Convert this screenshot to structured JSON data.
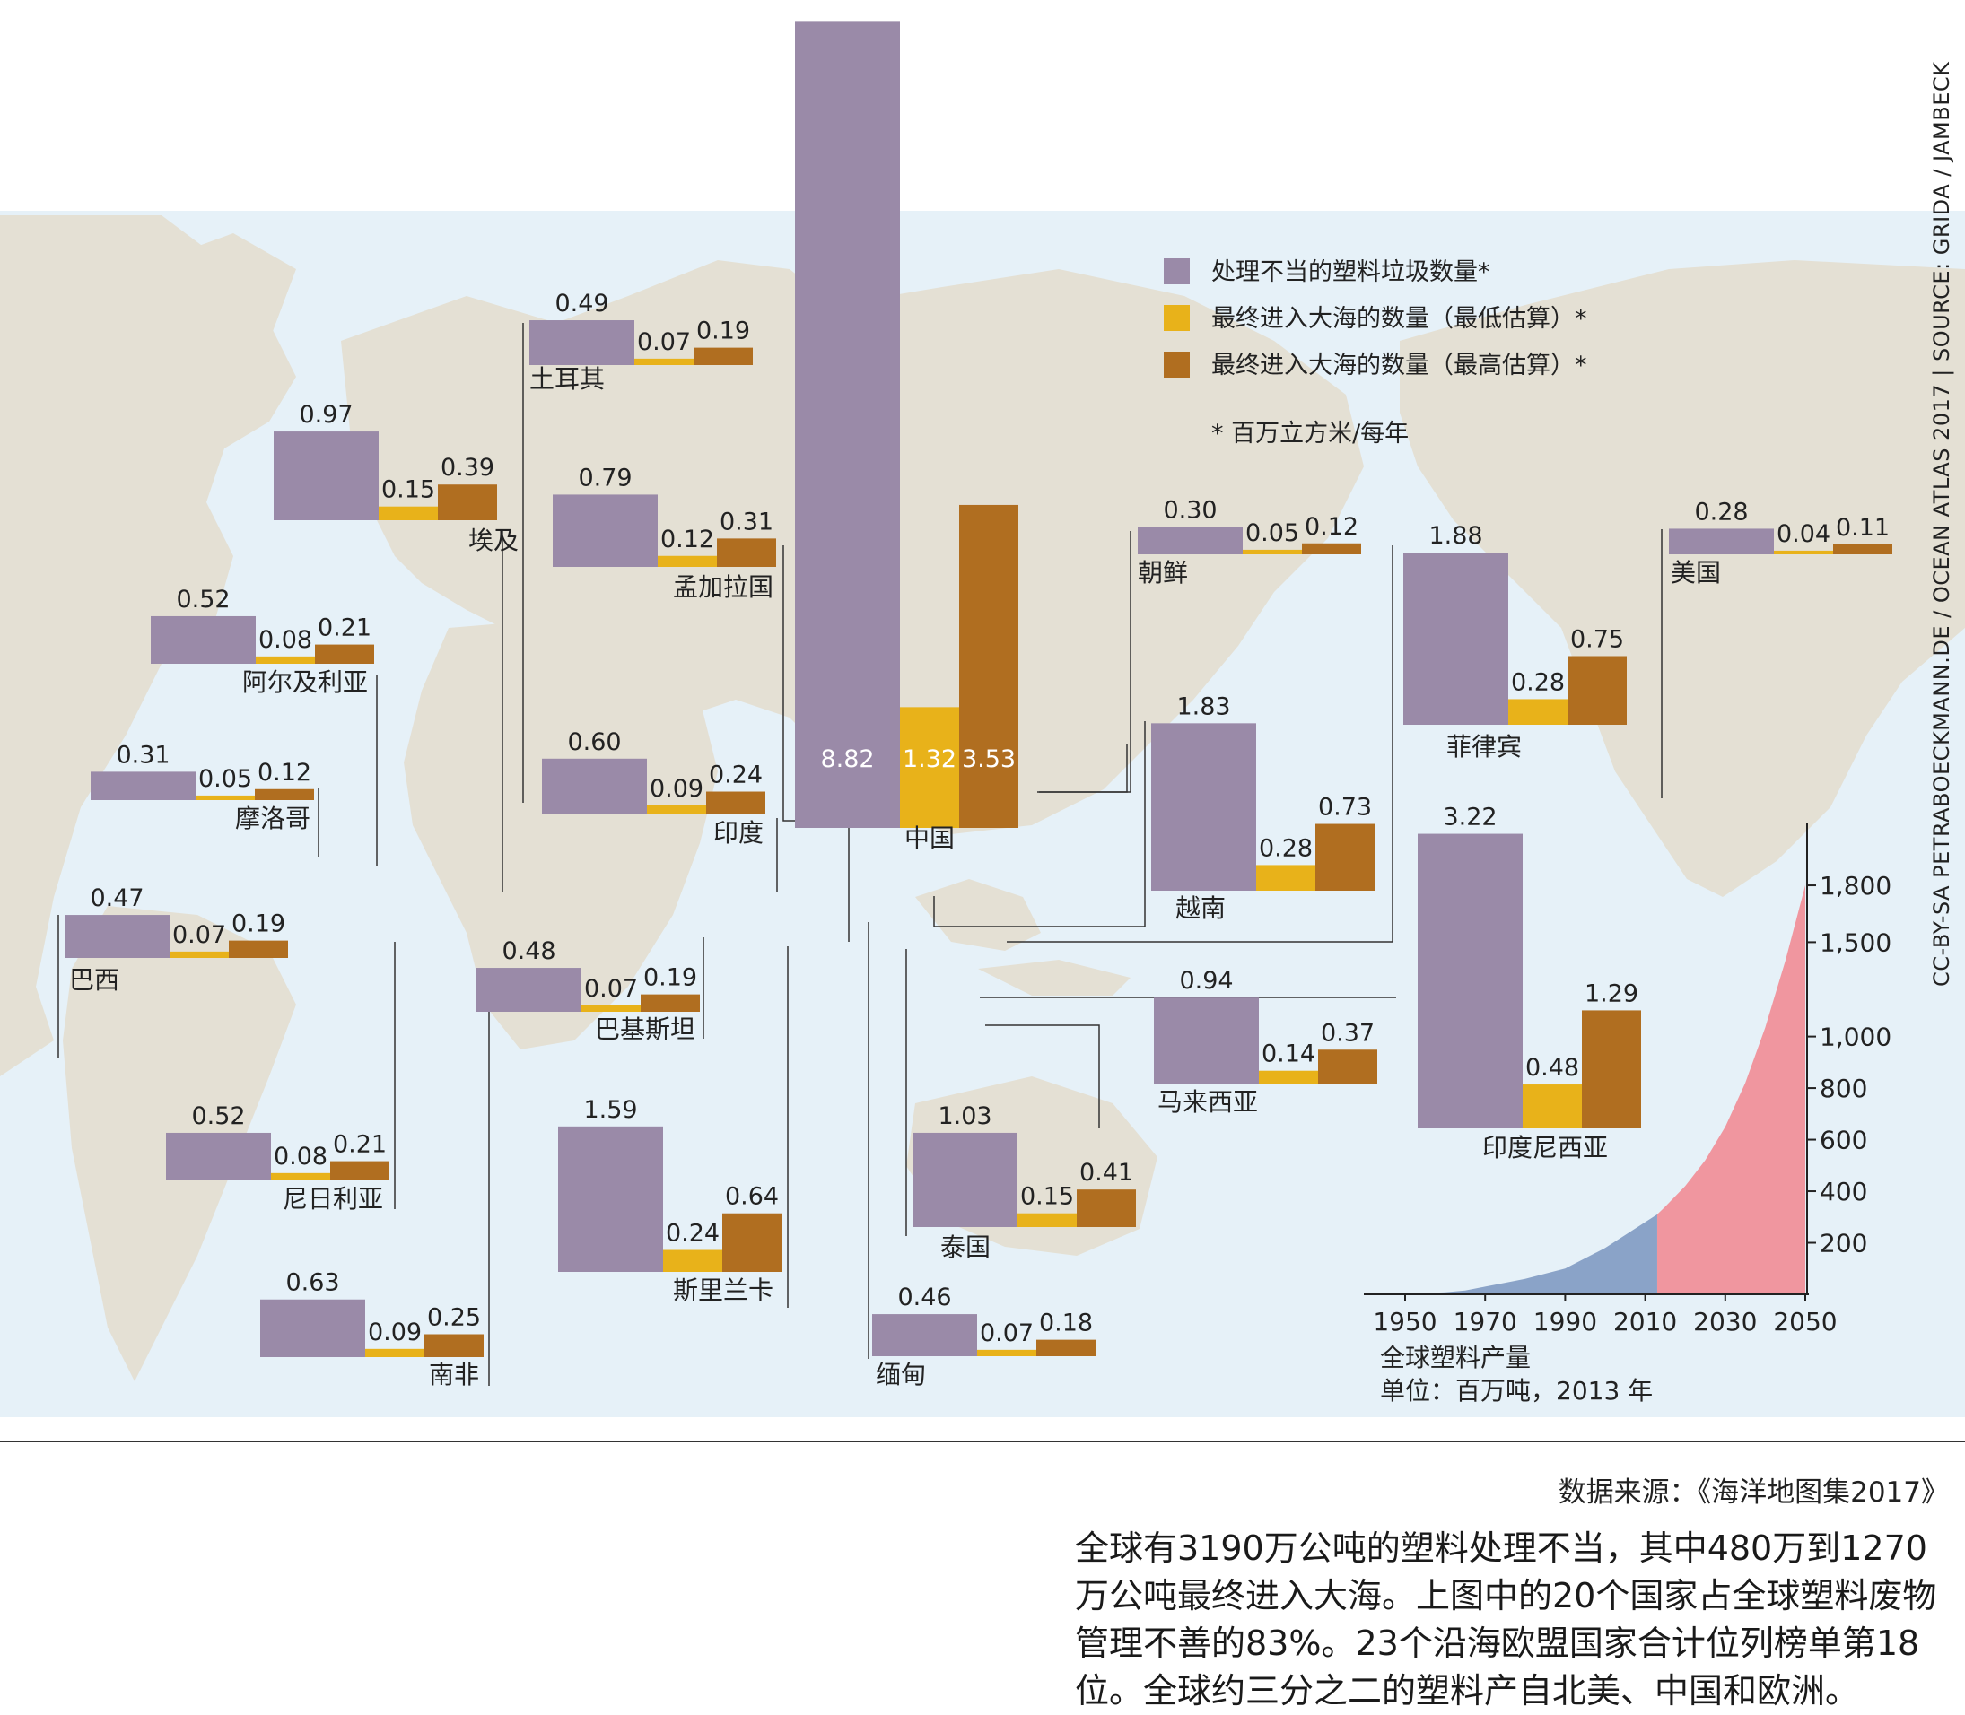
{
  "legend": {
    "mismanaged": "处理不当的塑料垃圾数量*",
    "ocean_low": "最终进入大海的数量（最低估算）*",
    "ocean_high": "最终进入大海的数量（最高估算）*",
    "unit_note": "* 百万立方米/每年"
  },
  "colors": {
    "mismanaged": "#9a8aa8",
    "ocean_low": "#e8b21a",
    "ocean_high": "#b06e20",
    "ocean_bg": "#e6f1f8",
    "land": "#e4e0d4",
    "production_historic": "#8aa3c8",
    "production_projected": "#f0969f"
  },
  "credit": "CC-BY-SA PETRABOECKMANN.DE / OCEAN ATLAS 2017 | SOURCE: GRIDA / JAMBECK",
  "chart_data": [
    {
      "type": "bar",
      "series": [
        {
          "name": "处理不当的塑料垃圾数量*",
          "key": "mismanaged"
        },
        {
          "name": "最终进入大海的数量（最低估算）*",
          "key": "ocean_low"
        },
        {
          "name": "最终进入大海的数量（最高估算）*",
          "key": "ocean_high"
        }
      ],
      "countries": [
        {
          "name": "中国",
          "mismanaged": 8.82,
          "ocean_low": 1.32,
          "ocean_high": 3.53
        },
        {
          "name": "印度尼西亚",
          "mismanaged": 3.22,
          "ocean_low": 0.48,
          "ocean_high": 1.29
        },
        {
          "name": "菲律宾",
          "mismanaged": 1.88,
          "ocean_low": 0.28,
          "ocean_high": 0.75
        },
        {
          "name": "越南",
          "mismanaged": 1.83,
          "ocean_low": 0.28,
          "ocean_high": 0.73
        },
        {
          "name": "斯里兰卡",
          "mismanaged": 1.59,
          "ocean_low": 0.24,
          "ocean_high": 0.64
        },
        {
          "name": "泰国",
          "mismanaged": 1.03,
          "ocean_low": 0.15,
          "ocean_high": 0.41
        },
        {
          "name": "埃及",
          "mismanaged": 0.97,
          "ocean_low": 0.15,
          "ocean_high": 0.39
        },
        {
          "name": "马来西亚",
          "mismanaged": 0.94,
          "ocean_low": 0.14,
          "ocean_high": 0.37
        },
        {
          "name": "尼日利亚",
          "mismanaged": 0.52,
          "ocean_low": 0.08,
          "ocean_high": 0.21
        },
        {
          "name": "孟加拉国",
          "mismanaged": 0.79,
          "ocean_low": 0.12,
          "ocean_high": 0.31
        },
        {
          "name": "南非",
          "mismanaged": 0.63,
          "ocean_low": 0.09,
          "ocean_high": 0.25
        },
        {
          "name": "印度",
          "mismanaged": 0.6,
          "ocean_low": 0.09,
          "ocean_high": 0.24
        },
        {
          "name": "阿尔及利亚",
          "mismanaged": 0.52,
          "ocean_low": 0.08,
          "ocean_high": 0.21
        },
        {
          "name": "土耳其",
          "mismanaged": 0.49,
          "ocean_low": 0.07,
          "ocean_high": 0.19
        },
        {
          "name": "巴基斯坦",
          "mismanaged": 0.48,
          "ocean_low": 0.07,
          "ocean_high": 0.19
        },
        {
          "name": "巴西",
          "mismanaged": 0.47,
          "ocean_low": 0.07,
          "ocean_high": 0.19
        },
        {
          "name": "缅甸",
          "mismanaged": 0.46,
          "ocean_low": 0.07,
          "ocean_high": 0.18
        },
        {
          "name": "摩洛哥",
          "mismanaged": 0.31,
          "ocean_low": 0.05,
          "ocean_high": 0.12
        },
        {
          "name": "朝鲜",
          "mismanaged": 0.3,
          "ocean_low": 0.05,
          "ocean_high": 0.12
        },
        {
          "name": "美国",
          "mismanaged": 0.28,
          "ocean_low": 0.04,
          "ocean_high": 0.11
        }
      ]
    },
    {
      "type": "area",
      "title": "全球塑料产量",
      "subtitle": "单位：百万吨，2013 年",
      "x_ticks": [
        "1950",
        "1970",
        "1990",
        "2010",
        "2030",
        "2050"
      ],
      "y_ticks": [
        "200",
        "400",
        "600",
        "800",
        "1,000",
        "1,500",
        "1,800"
      ],
      "xlim": [
        1950,
        2050
      ],
      "series": [
        {
          "key": "historic",
          "x": [
            1950,
            1955,
            1960,
            1965,
            1970,
            1975,
            1980,
            1985,
            1990,
            1995,
            2000,
            2005,
            2010,
            2013
          ],
          "y": [
            2,
            5,
            8,
            15,
            30,
            45,
            60,
            80,
            100,
            140,
            180,
            230,
            280,
            310
          ]
        },
        {
          "key": "projected",
          "x": [
            2013,
            2015,
            2020,
            2025,
            2030,
            2035,
            2040,
            2045,
            2050
          ],
          "y": [
            310,
            340,
            420,
            520,
            650,
            820,
            1050,
            1400,
            1800
          ]
        }
      ]
    }
  ],
  "source_line": "数据来源：《海洋地图集2017》",
  "caption": "全球有3190万公吨的塑料处理不当，其中480万到1270万公吨最终进入大海。上图中的20个国家占全球塑料废物管理不善的83%。23个沿海欧盟国家合计位列榜单第18位。全球约三分之二的塑料产自北美、中国和欧洲。"
}
